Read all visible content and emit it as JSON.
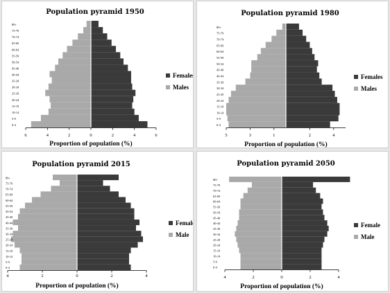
{
  "colors": {
    "females": "#3a3a3a",
    "males": "#a9a9a9",
    "axis": "#000000",
    "divider": "#ffffff"
  },
  "chart_data": [
    {
      "type": "bar",
      "orientation": "population-pyramid",
      "title": "Population pyramid 1950",
      "xlabel": "Proportion of population (%)",
      "xlim": [
        -6,
        6
      ],
      "xticks": [
        "6",
        "4",
        "2",
        "0",
        "2",
        "4",
        "6"
      ],
      "legend_position": "right",
      "categories": [
        "0-4",
        "5-9",
        "10-14",
        "15-19",
        "20-24",
        "25-29",
        "30-34",
        "35-39",
        "40-44",
        "45-49",
        "50-54",
        "55-59",
        "60-64",
        "65-69",
        "70-74",
        "75-79",
        "80+"
      ],
      "series": [
        {
          "name": "Females",
          "side": "right",
          "values": [
            5.2,
            4.4,
            4.0,
            3.8,
            3.9,
            4.1,
            3.8,
            3.7,
            3.7,
            3.4,
            3.0,
            2.7,
            2.3,
            1.9,
            1.5,
            1.1,
            0.7
          ]
        },
        {
          "name": "Males",
          "side": "left",
          "values": [
            5.5,
            4.6,
            3.9,
            3.7,
            3.8,
            4.2,
            3.9,
            3.6,
            3.8,
            3.3,
            3.0,
            2.6,
            2.2,
            1.7,
            1.2,
            0.7,
            0.4
          ]
        }
      ]
    },
    {
      "type": "bar",
      "orientation": "population-pyramid",
      "title": "Population pyramid 1980",
      "xlabel": "Proportion of population (%)",
      "xlim": [
        -5,
        5
      ],
      "xticks": [
        "5",
        "3",
        "1",
        "2",
        "4"
      ],
      "legend_position": "right",
      "categories": [
        "0-4",
        "5-9",
        "10-14",
        "15-19",
        "20-24",
        "25-29",
        "30-34",
        "35-39",
        "40-44",
        "45-49",
        "50-54",
        "55-59",
        "60-64",
        "65-69",
        "70-74",
        "75-79",
        "80+"
      ],
      "series": [
        {
          "name": "Females",
          "side": "right",
          "values": [
            3.7,
            4.4,
            4.5,
            4.5,
            4.3,
            4.1,
            3.9,
            3.0,
            2.8,
            2.6,
            2.7,
            2.4,
            2.2,
            2.0,
            1.7,
            1.4,
            1.1
          ]
        },
        {
          "name": "Males",
          "side": "left",
          "values": [
            4.8,
            4.9,
            5.0,
            5.0,
            4.8,
            4.6,
            4.2,
            3.4,
            3.0,
            2.9,
            2.9,
            2.4,
            2.1,
            1.7,
            1.2,
            0.8,
            0.3
          ]
        }
      ]
    },
    {
      "type": "bar",
      "orientation": "population-pyramid",
      "title": "Population pyramid 2015",
      "xlabel": "Proportion of population (%)",
      "xlim": [
        -4,
        4
      ],
      "xticks": [
        "4",
        "2",
        "0",
        "2",
        "4"
      ],
      "legend_position": "right",
      "categories": [
        "0-4",
        "5-9",
        "10-14",
        "15-19",
        "20-24",
        "25-29",
        "30-34",
        "35-39",
        "40-44",
        "45-49",
        "50-54",
        "55-59",
        "60-64",
        "65-69",
        "70-74",
        "75-79",
        "80+"
      ],
      "series": [
        {
          "name": "Female",
          "side": "right",
          "values": [
            3.1,
            3.0,
            3.0,
            3.1,
            3.5,
            3.8,
            3.7,
            3.4,
            3.6,
            3.3,
            3.3,
            3.1,
            2.8,
            2.4,
            1.9,
            1.5,
            2.4
          ]
        },
        {
          "name": "Male",
          "side": "left",
          "values": [
            3.3,
            3.2,
            3.2,
            3.3,
            3.6,
            3.8,
            3.7,
            3.4,
            3.7,
            3.4,
            3.3,
            3.0,
            2.6,
            2.1,
            1.5,
            1.0,
            1.4
          ]
        }
      ]
    },
    {
      "type": "bar",
      "orientation": "population-pyramid",
      "title": "Population pyramid 2050",
      "xlabel": "Proportion of population (%)",
      "xlim": [
        -4,
        4
      ],
      "xticks": [
        "4",
        "2",
        "0",
        "2",
        "4"
      ],
      "legend_position": "right",
      "categories": [
        "0-4",
        "5-9",
        "10-14",
        "15-19",
        "20-24",
        "25-29",
        "30-34",
        "35-39",
        "40-44",
        "45-49",
        "50-54",
        "55-59",
        "60-64",
        "65-69",
        "70-74",
        "75-79",
        "80+"
      ],
      "series": [
        {
          "name": "Female",
          "side": "right",
          "values": [
            2.8,
            2.8,
            2.8,
            2.8,
            2.9,
            3.0,
            3.2,
            3.3,
            3.2,
            3.0,
            2.9,
            2.8,
            2.9,
            2.7,
            2.4,
            2.2,
            4.8
          ]
        },
        {
          "name": "Male",
          "side": "left",
          "values": [
            2.9,
            2.9,
            2.9,
            3.0,
            3.1,
            3.2,
            3.3,
            3.2,
            3.1,
            3.0,
            3.0,
            2.9,
            2.9,
            2.7,
            2.4,
            2.1,
            3.7
          ]
        }
      ]
    }
  ]
}
